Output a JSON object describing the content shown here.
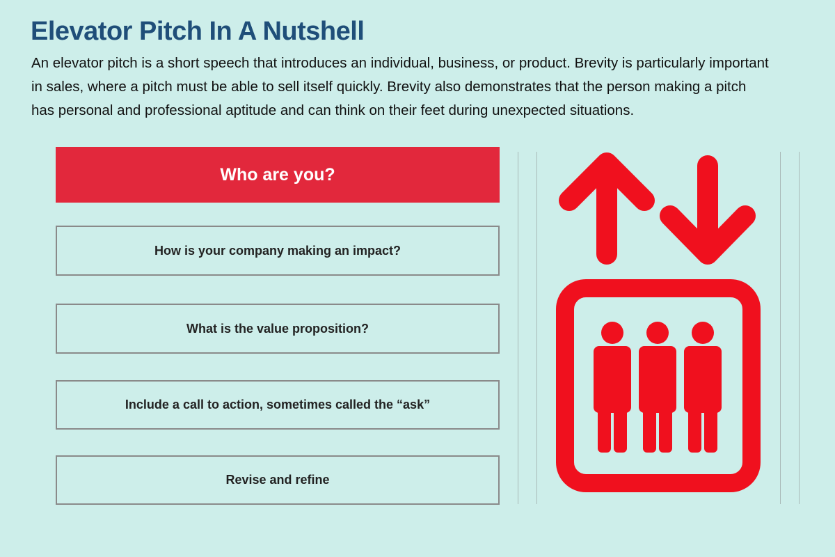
{
  "header": {
    "title": "Elevator Pitch In A Nutshell",
    "description": "An elevator pitch is a short speech that introduces an individual, business, or product. Brevity is particularly important in sales, where a pitch must be able to sell itself quickly. Brevity also demonstrates that the person making a pitch has personal and professional aptitude and can think on their feet during unexpected situations."
  },
  "steps": [
    "Who are you?",
    "How is your company making an impact?",
    "What is the value proposition?",
    "Include a call to action, sometimes called the “ask”",
    "Revise and refine"
  ]
}
